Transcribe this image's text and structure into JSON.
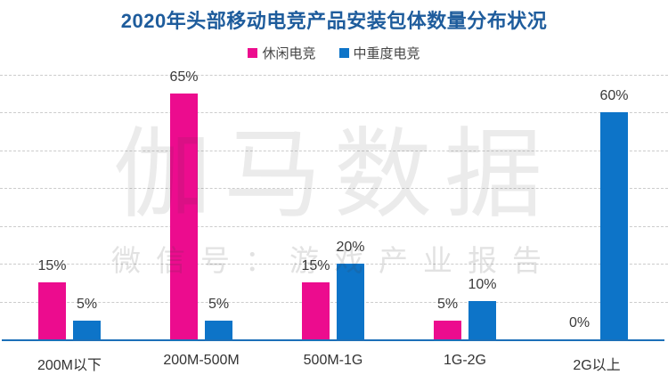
{
  "title": {
    "text": "2020年头部移动电竞产品安装包体数量分布状况",
    "color": "#1E5C9C"
  },
  "legend": {
    "items": [
      {
        "label": "休闲电竞",
        "color": "#EC0C8E"
      },
      {
        "label": "中重度电竞",
        "color": "#0D74C8"
      }
    ]
  },
  "watermark": {
    "line1": "伽马数据",
    "line2": "微信号：游戏产业报告"
  },
  "axis": {
    "color": "#1C70B8"
  },
  "chart_data": {
    "type": "bar",
    "title": "2020年头部移动电竞产品安装包体数量分布状况",
    "categories": [
      "200M以下",
      "200M-500M",
      "500M-1G",
      "1G-2G",
      "2G以上"
    ],
    "series": [
      {
        "name": "休闲电竞",
        "color": "#EC0C8E",
        "values": [
          15,
          65,
          15,
          5,
          0
        ]
      },
      {
        "name": "中重度电竞",
        "color": "#0D74C8",
        "values": [
          5,
          5,
          20,
          10,
          60
        ]
      }
    ],
    "value_labels": [
      [
        "15%",
        "65%",
        "15%",
        "5%",
        "0%"
      ],
      [
        "5%",
        "5%",
        "20%",
        "10%",
        "60%"
      ]
    ],
    "value_suffix": "%",
    "xlabel": "",
    "ylabel": "",
    "ylim": [
      0,
      70
    ],
    "gridlines": [
      10,
      20,
      30,
      40,
      50,
      60,
      70
    ],
    "grid_style": "dashed",
    "legend_position": "top",
    "y_axis_labels_visible": false
  }
}
